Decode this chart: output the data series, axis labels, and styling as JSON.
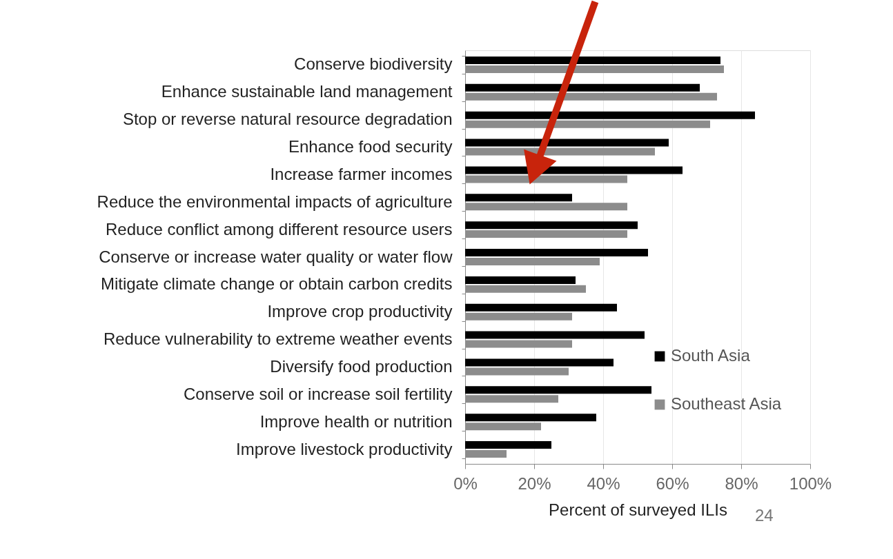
{
  "chart_data": {
    "type": "bar",
    "orientation": "horizontal",
    "xlabel": "Percent of surveyed ILIs",
    "categories": [
      "Conserve biodiversity",
      "Enhance sustainable land management",
      "Stop or reverse natural resource degradation",
      "Enhance food security",
      "Increase farmer incomes",
      "Reduce the environmental impacts of agriculture",
      "Reduce conflict among different resource users",
      "Conserve or increase water quality or water flow",
      "Mitigate climate change or obtain carbon credits",
      "Improve crop productivity",
      "Reduce vulnerability to extreme weather events",
      "Diversify food production",
      "Conserve soil or increase soil fertility",
      "Improve health or nutrition",
      "Improve livestock productivity"
    ],
    "series": [
      {
        "name": "South Asia",
        "color": "#000000",
        "values": [
          74,
          68,
          84,
          59,
          63,
          31,
          50,
          53,
          32,
          44,
          52,
          43,
          54,
          38,
          25
        ]
      },
      {
        "name": "Southeast Asia",
        "color": "#8c8c8c",
        "values": [
          75,
          73,
          71,
          55,
          47,
          47,
          47,
          39,
          35,
          31,
          31,
          30,
          27,
          22,
          12
        ]
      }
    ],
    "xlim": [
      0,
      100
    ],
    "xticks": [
      {
        "value": 0,
        "label": "0%"
      },
      {
        "value": 20,
        "label": "20%"
      },
      {
        "value": 40,
        "label": "40%"
      },
      {
        "value": 60,
        "label": "60%"
      },
      {
        "value": 80,
        "label": "80%"
      },
      {
        "value": 100,
        "label": "100%"
      }
    ],
    "grid": "x",
    "legend": "bottom right",
    "annotations": [
      "24"
    ]
  }
}
